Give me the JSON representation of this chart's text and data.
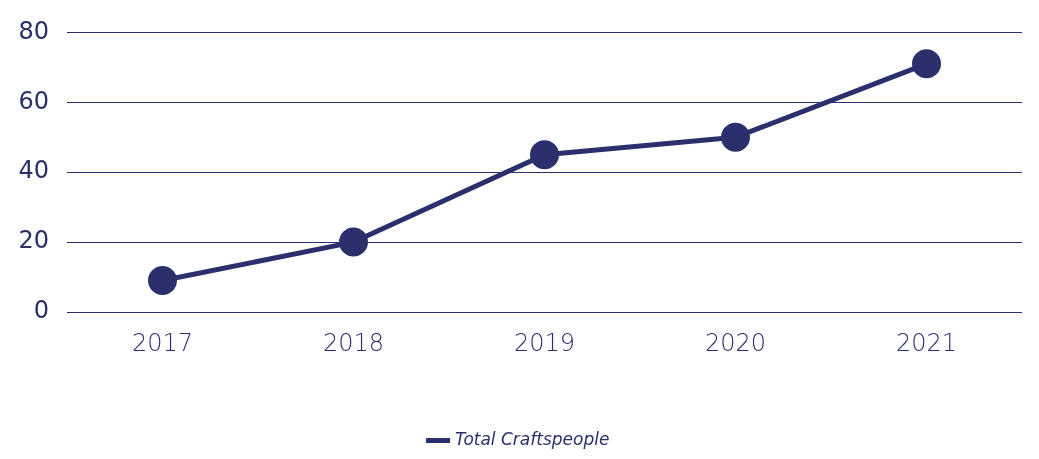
{
  "chart_data": {
    "type": "line",
    "categories": [
      "2017",
      "2018",
      "2019",
      "2020",
      "2021"
    ],
    "series": [
      {
        "name": "Total Craftspeople",
        "color": "#2b2f6b",
        "values": [
          9,
          20,
          45,
          50,
          71
        ]
      }
    ],
    "ylim": [
      0,
      80
    ],
    "yticks": [
      0,
      20,
      40,
      60,
      80
    ],
    "grid": "y",
    "legend": "bottom",
    "marker": "circle",
    "line_style": "solid"
  }
}
